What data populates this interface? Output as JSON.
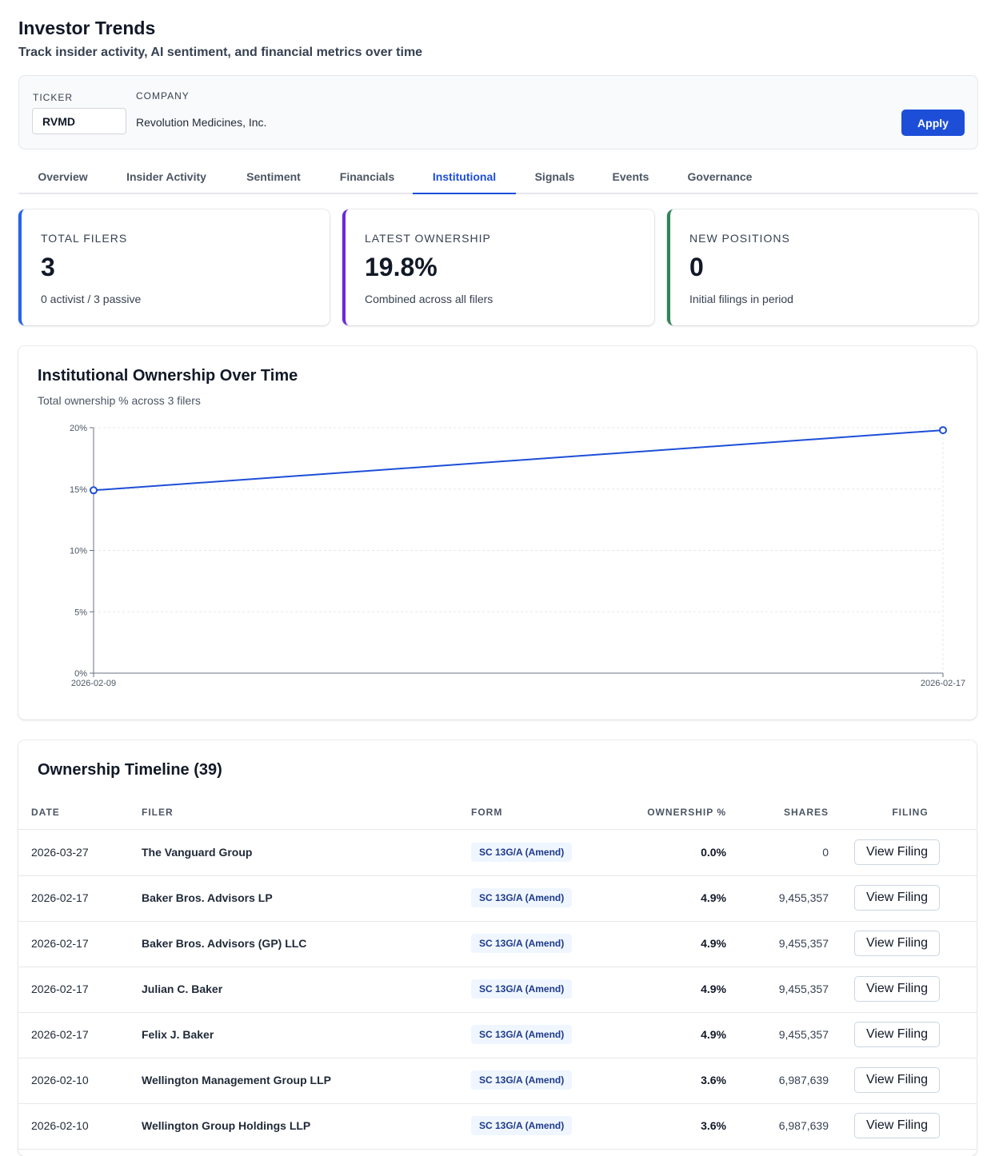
{
  "header": {
    "title": "Investor Trends",
    "subtitle": "Track insider activity, AI sentiment, and financial metrics over time"
  },
  "filter": {
    "ticker_label": "TICKER",
    "ticker_value": "RVMD",
    "company_label": "COMPANY",
    "company_value": "Revolution Medicines, Inc.",
    "apply_label": "Apply"
  },
  "tabs": [
    {
      "label": "Overview",
      "active": false
    },
    {
      "label": "Insider Activity",
      "active": false
    },
    {
      "label": "Sentiment",
      "active": false
    },
    {
      "label": "Financials",
      "active": false
    },
    {
      "label": "Institutional",
      "active": true
    },
    {
      "label": "Signals",
      "active": false
    },
    {
      "label": "Events",
      "active": false
    },
    {
      "label": "Governance",
      "active": false
    }
  ],
  "stats": [
    {
      "label": "TOTAL FILERS",
      "value": "3",
      "note": "0 activist / 3 passive",
      "color": "#2563eb"
    },
    {
      "label": "LATEST OWNERSHIP",
      "value": "19.8%",
      "note": "Combined across all filers",
      "color": "#6d28d9"
    },
    {
      "label": "NEW POSITIONS",
      "value": "0",
      "note": "Initial filings in period",
      "color": "#2f855a"
    }
  ],
  "chart": {
    "title": "Institutional Ownership Over Time",
    "subtitle": "Total ownership % across 3 filers"
  },
  "chart_data": {
    "type": "line",
    "title": "Institutional Ownership Over Time",
    "subtitle": "Total ownership % across 3 filers",
    "x": [
      "2026-02-09",
      "2026-02-17"
    ],
    "values": [
      14.9,
      19.8
    ],
    "ylim": [
      0,
      20
    ],
    "yticks": [
      "0%",
      "5%",
      "10%",
      "15%",
      "20%"
    ],
    "ytick_values": [
      0,
      5,
      10,
      15,
      20
    ],
    "xticks": [
      "2026-02-09",
      "2026-02-17"
    ],
    "grid": true,
    "line_color": "#1d4ed8"
  },
  "timeline": {
    "title": "Ownership Timeline (39)",
    "columns": [
      "DATE",
      "FILER",
      "FORM",
      "OWNERSHIP %",
      "SHARES",
      "FILING"
    ],
    "view_label": "View Filing",
    "rows": [
      {
        "date": "2026-03-27",
        "filer": "The Vanguard Group",
        "form": "SC 13G/A (Amend)",
        "pct": "0.0%",
        "shares": "0"
      },
      {
        "date": "2026-02-17",
        "filer": "Baker Bros. Advisors LP",
        "form": "SC 13G/A (Amend)",
        "pct": "4.9%",
        "shares": "9,455,357"
      },
      {
        "date": "2026-02-17",
        "filer": "Baker Bros. Advisors (GP) LLC",
        "form": "SC 13G/A (Amend)",
        "pct": "4.9%",
        "shares": "9,455,357"
      },
      {
        "date": "2026-02-17",
        "filer": "Julian C. Baker",
        "form": "SC 13G/A (Amend)",
        "pct": "4.9%",
        "shares": "9,455,357"
      },
      {
        "date": "2026-02-17",
        "filer": "Felix J. Baker",
        "form": "SC 13G/A (Amend)",
        "pct": "4.9%",
        "shares": "9,455,357"
      },
      {
        "date": "2026-02-10",
        "filer": "Wellington Management Group LLP",
        "form": "SC 13G/A (Amend)",
        "pct": "3.6%",
        "shares": "6,987,639"
      },
      {
        "date": "2026-02-10",
        "filer": "Wellington Group Holdings LLP",
        "form": "SC 13G/A (Amend)",
        "pct": "3.6%",
        "shares": "6,987,639"
      }
    ]
  }
}
